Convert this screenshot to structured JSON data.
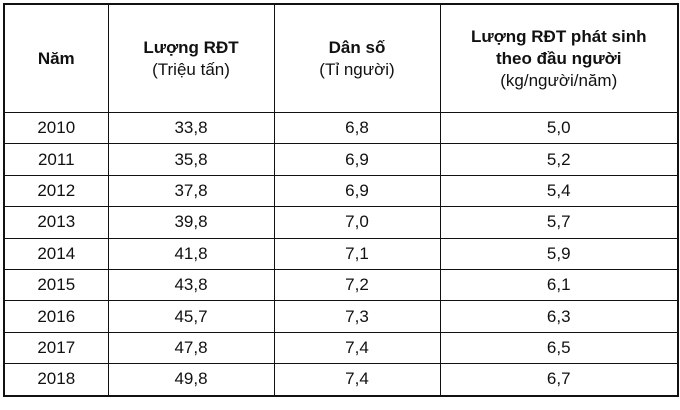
{
  "table": {
    "headers": [
      {
        "main": "Năm",
        "sub": ""
      },
      {
        "main": "Lượng RĐT",
        "sub": "(Triệu tấn)"
      },
      {
        "main": "Dân số",
        "sub": "(Tỉ người)"
      },
      {
        "main": "Lượng RĐT phát sinh theo đầu người",
        "sub": "(kg/người/năm)"
      }
    ],
    "rows": [
      [
        "2010",
        "33,8",
        "6,8",
        "5,0"
      ],
      [
        "2011",
        "35,8",
        "6,9",
        "5,2"
      ],
      [
        "2012",
        "37,8",
        "6,9",
        "5,4"
      ],
      [
        "2013",
        "39,8",
        "7,0",
        "5,7"
      ],
      [
        "2014",
        "41,8",
        "7,1",
        "5,9"
      ],
      [
        "2015",
        "43,8",
        "7,2",
        "6,1"
      ],
      [
        "2016",
        "45,7",
        "7,3",
        "6,3"
      ],
      [
        "2017",
        "47,8",
        "7,4",
        "6,5"
      ],
      [
        "2018",
        "49,8",
        "7,4",
        "6,7"
      ]
    ]
  }
}
